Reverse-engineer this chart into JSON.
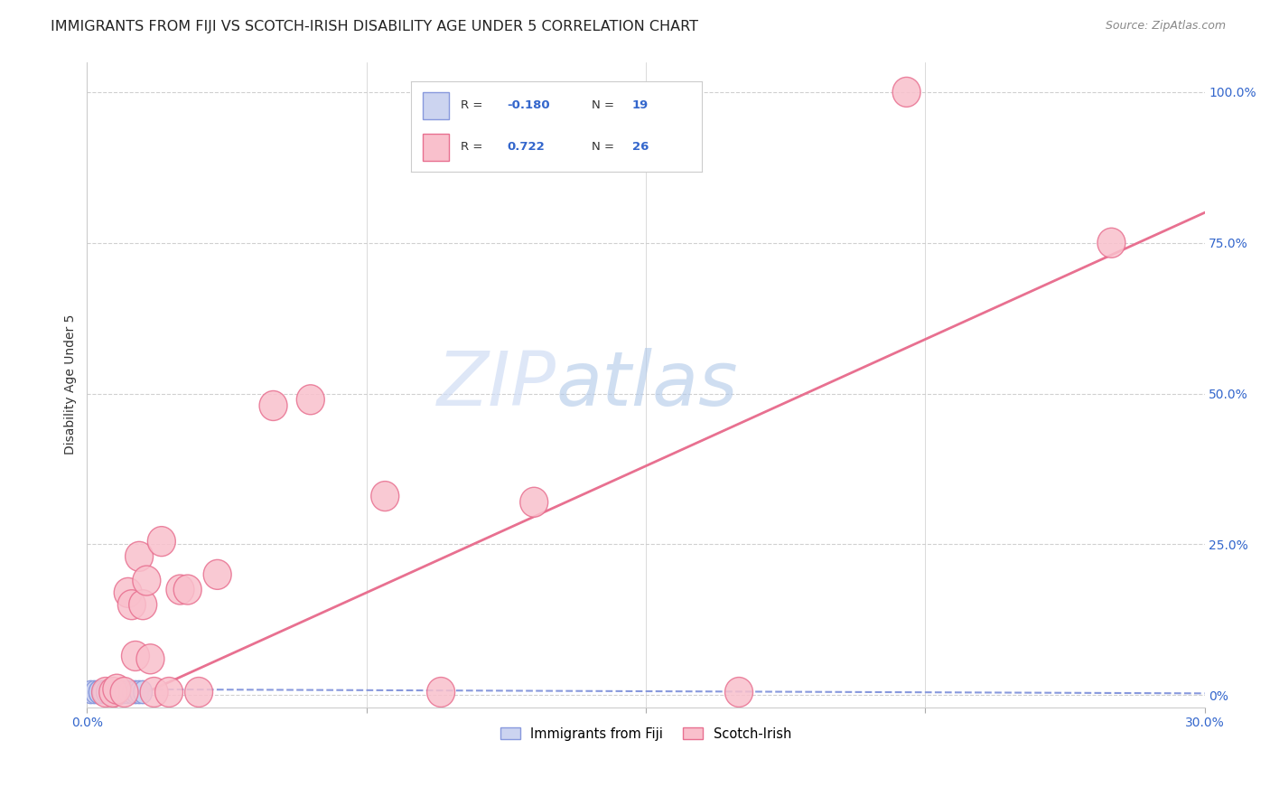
{
  "title": "IMMIGRANTS FROM FIJI VS SCOTCH-IRISH DISABILITY AGE UNDER 5 CORRELATION CHART",
  "source": "Source: ZipAtlas.com",
  "ylabel": "Disability Age Under 5",
  "xlim": [
    0.0,
    0.3
  ],
  "ylim": [
    -0.02,
    1.05
  ],
  "xtick_positions": [
    0.0,
    0.3
  ],
  "xtick_labels": [
    "0.0%",
    "30.0%"
  ],
  "ytick_positions": [
    0.0,
    0.25,
    0.5,
    0.75,
    1.0
  ],
  "ytick_labels_right": [
    "0%",
    "25.0%",
    "50.0%",
    "75.0%",
    "100.0%"
  ],
  "grid_color": "#d0d0d0",
  "background_color": "#ffffff",
  "fiji_color": "#ccd4f0",
  "fiji_edge_color": "#8899dd",
  "scotch_color": "#f9c0cc",
  "scotch_edge_color": "#e87090",
  "fiji_R": -0.18,
  "fiji_N": 19,
  "scotch_R": 0.722,
  "scotch_N": 26,
  "fiji_points_x": [
    0.001,
    0.002,
    0.003,
    0.003,
    0.004,
    0.004,
    0.005,
    0.005,
    0.006,
    0.006,
    0.007,
    0.008,
    0.009,
    0.01,
    0.011,
    0.012,
    0.013,
    0.014,
    0.015
  ],
  "fiji_points_y": [
    0.005,
    0.005,
    0.005,
    0.005,
    0.005,
    0.005,
    0.005,
    0.005,
    0.005,
    0.005,
    0.005,
    0.005,
    0.005,
    0.005,
    0.005,
    0.005,
    0.005,
    0.005,
    0.005
  ],
  "scotch_points_x": [
    0.005,
    0.007,
    0.008,
    0.01,
    0.011,
    0.012,
    0.013,
    0.014,
    0.015,
    0.016,
    0.017,
    0.018,
    0.02,
    0.022,
    0.025,
    0.027,
    0.03,
    0.035,
    0.05,
    0.06,
    0.08,
    0.095,
    0.12,
    0.175,
    0.22,
    0.275
  ],
  "scotch_points_y": [
    0.005,
    0.005,
    0.01,
    0.005,
    0.17,
    0.15,
    0.065,
    0.23,
    0.15,
    0.19,
    0.06,
    0.005,
    0.255,
    0.005,
    0.175,
    0.175,
    0.005,
    0.2,
    0.48,
    0.49,
    0.33,
    0.005,
    0.32,
    0.005,
    1.0,
    0.75
  ],
  "fiji_trend_x": [
    0.0,
    0.3
  ],
  "fiji_trend_y": [
    0.01,
    0.003
  ],
  "scotch_trend_x": [
    0.0,
    0.3
  ],
  "scotch_trend_y": [
    -0.04,
    0.8
  ],
  "watermark_zip": "ZIP",
  "watermark_atlas": "atlas",
  "legend_fiji_label": "Immigrants from Fiji",
  "legend_scotch_label": "Scotch-Irish",
  "title_fontsize": 11.5,
  "axis_label_fontsize": 10,
  "tick_fontsize": 10,
  "source_fontsize": 9
}
